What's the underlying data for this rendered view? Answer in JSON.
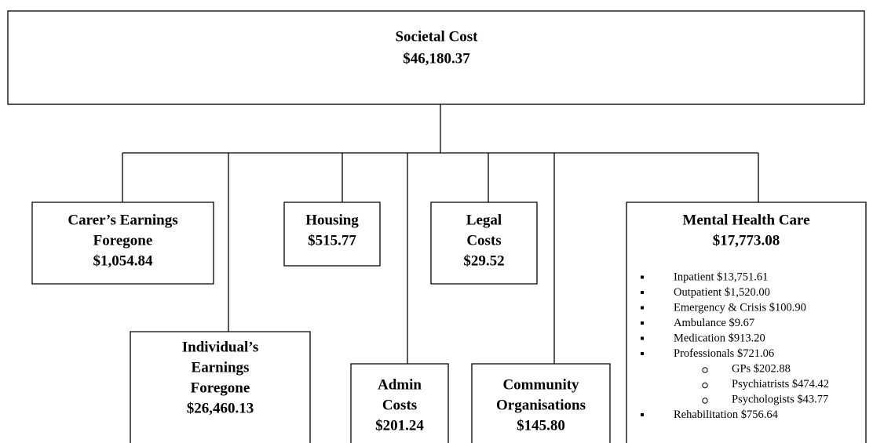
{
  "root": {
    "label": "Societal Cost",
    "value": "$46,180.37"
  },
  "nodes": [
    {
      "label": [
        "Carer’s Earnings",
        "Foregone"
      ],
      "value": "$1,054.84"
    },
    {
      "label": [
        "Individual’s",
        "Earnings",
        "Foregone"
      ],
      "value": "$26,460.13"
    },
    {
      "label": [
        "Housing"
      ],
      "value": "$515.77"
    },
    {
      "label": [
        "Admin",
        "Costs"
      ],
      "value": "$201.24"
    },
    {
      "label": [
        "Legal",
        "Costs"
      ],
      "value": "$29.52"
    },
    {
      "label": [
        "Community",
        "Organisations"
      ],
      "value": "$145.80"
    },
    {
      "label": [
        "Mental Health Care"
      ],
      "value": "$17,773.08",
      "items": [
        {
          "text": "Inpatient $13,751.61"
        },
        {
          "text": "Outpatient $1,520.00"
        },
        {
          "text": "Emergency & Crisis $100.90"
        },
        {
          "text": "Ambulance $9.67"
        },
        {
          "text": "Medication $913.20"
        },
        {
          "text": "Professionals $721.06",
          "subitems": [
            "GPs $202.88",
            "Psychiatrists $474.42",
            "Psychologists $43.77"
          ]
        },
        {
          "text": "Rehabilitation $756.64"
        }
      ]
    }
  ]
}
